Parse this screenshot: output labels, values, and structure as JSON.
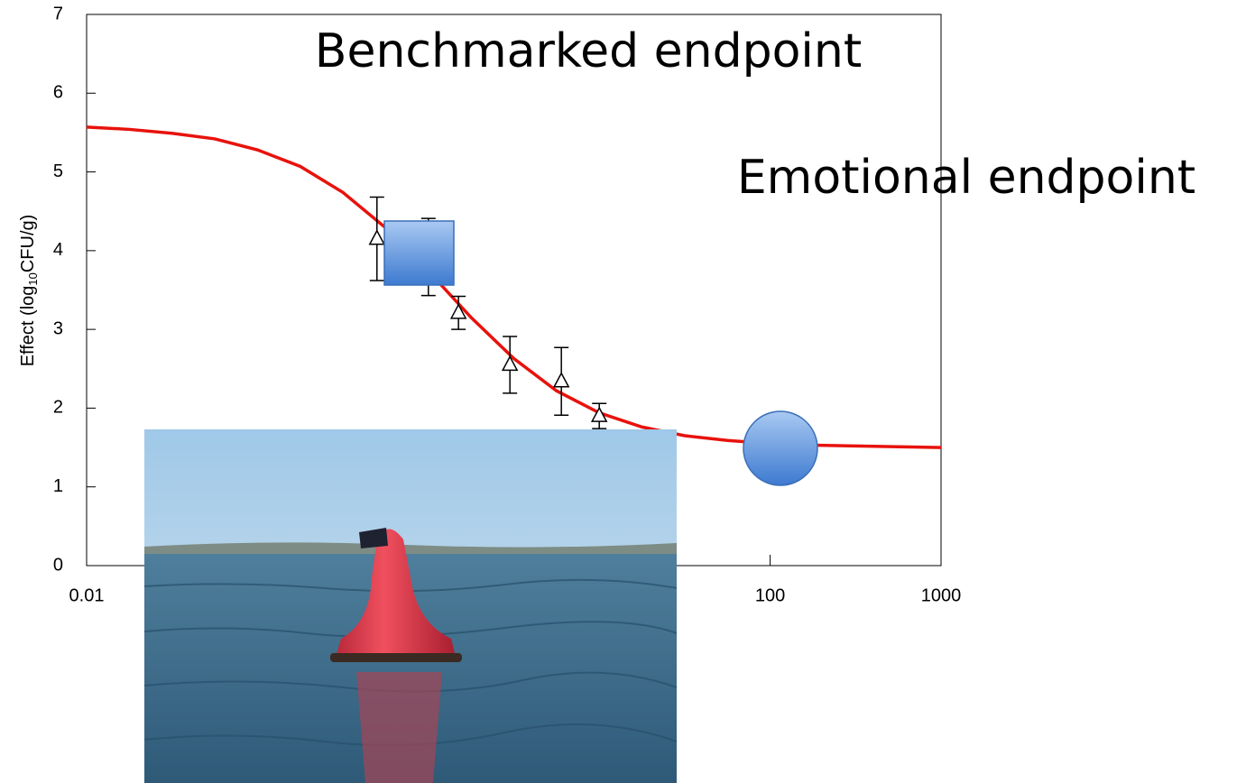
{
  "chart_data": {
    "type": "scatter",
    "xscale": "log",
    "ylabel": [
      "Effect (log",
      "10",
      "CFU/g)"
    ],
    "xlim": [
      0.01,
      1000
    ],
    "xticks": [
      0.01,
      100,
      1000
    ],
    "ylim": [
      0,
      7
    ],
    "yticks": [
      0,
      1,
      2,
      3,
      4,
      5,
      6,
      7
    ],
    "points": {
      "x": [
        0.5,
        1,
        1.5,
        3,
        6,
        10
      ],
      "values": [
        4.15,
        3.92,
        3.21,
        2.55,
        2.34,
        1.9
      ],
      "errors": [
        0.53,
        0.49,
        0.21,
        0.36,
        0.43,
        0.16
      ],
      "color": "#000000"
    },
    "curve": {
      "x": [
        0.01,
        0.0178,
        0.0316,
        0.0562,
        0.1,
        0.178,
        0.316,
        0.562,
        1,
        1.78,
        3.16,
        5.62,
        10,
        17.8,
        31.6,
        56.2,
        100,
        178,
        316,
        562,
        1000
      ],
      "values": [
        5.57,
        5.54,
        5.49,
        5.42,
        5.28,
        5.07,
        4.74,
        4.29,
        3.74,
        3.15,
        2.63,
        2.22,
        1.94,
        1.76,
        1.65,
        1.59,
        1.55,
        1.53,
        1.52,
        1.51,
        1.5
      ],
      "color": "#e8120c"
    },
    "annotations": [
      "Benchmarked endpoint",
      "Emotional endpoint"
    ]
  }
}
